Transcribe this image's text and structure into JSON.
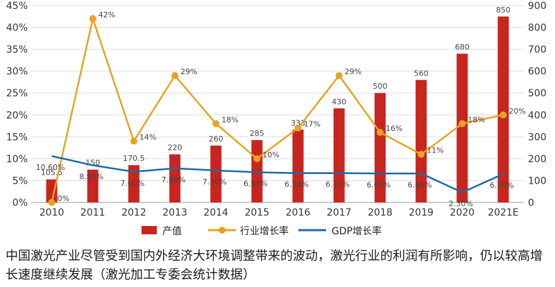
{
  "chart_data": {
    "type": "bar+line",
    "categories": [
      "2010",
      "2011",
      "2012",
      "2013",
      "2014",
      "2015",
      "2016",
      "2017",
      "2018",
      "2019",
      "2020",
      "2021E"
    ],
    "bar_series": {
      "name": "产值",
      "values": [
        105.5,
        150,
        170.5,
        220,
        260,
        285,
        333,
        430,
        500,
        560,
        680,
        850
      ],
      "labels": [
        "105.5",
        "150",
        "170.5",
        "220",
        "260",
        "285",
        "333",
        "430",
        "500",
        "560",
        "680",
        "850"
      ],
      "color": "#c8251f",
      "axis": "right"
    },
    "line_series": [
      {
        "name": "行业增长率",
        "values": [
          0,
          42,
          14,
          29,
          18,
          10,
          17,
          29,
          16,
          11,
          18,
          20
        ],
        "labels": [
          "0%",
          "42%",
          "14%",
          "29%",
          "18%",
          "10%",
          "17%",
          "29%",
          "16%",
          "11%",
          "18%",
          "20%"
        ],
        "color": "#e9a321",
        "marker": "circle",
        "axis": "left"
      },
      {
        "name": "GDP增长率",
        "values": [
          10.6,
          8.5,
          7.0,
          7.8,
          7.3,
          6.9,
          6.7,
          6.7,
          6.6,
          6.6,
          2.3,
          6.5
        ],
        "labels": [
          "10.60%",
          "8.50%",
          "7.00%",
          "7.80%",
          "7.30%",
          "6.90%",
          "6.70%",
          "6.70%",
          "6.60%",
          "6.60%",
          "2.30%",
          "6.50%"
        ],
        "color": "#1f6aa5",
        "marker": "none",
        "axis": "left"
      }
    ],
    "y_left": {
      "min": 0,
      "max": 45,
      "step": 5,
      "ticks": [
        "0%",
        "5%",
        "10%",
        "15%",
        "20%",
        "25%",
        "30%",
        "35%",
        "40%",
        "45%"
      ]
    },
    "y_right": {
      "min": 0,
      "max": 900,
      "step": 100,
      "ticks": [
        "0",
        "100",
        "200",
        "300",
        "400",
        "500",
        "600",
        "700",
        "800",
        "900"
      ]
    },
    "grid": true,
    "legend_position": "bottom-center",
    "legend": [
      "产值",
      "行业增长率",
      "GDP增长率"
    ]
  },
  "caption": "中国激光产业尽管受到国内外经济大环境调整带来的波动，激光行业的利润有所影响，仍以较高增长速度继续发展（激光加工专委会统计数据）"
}
